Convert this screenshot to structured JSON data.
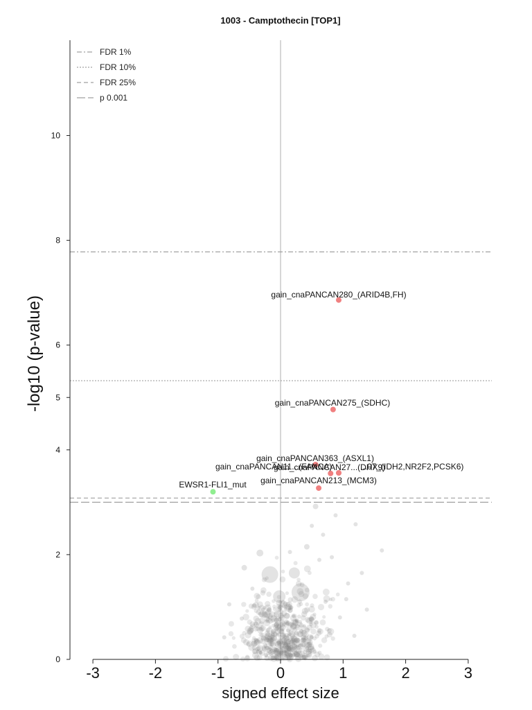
{
  "chart_data": {
    "type": "scatter",
    "title": "1003 - Camptothecin [TOP1]",
    "xlabel": "signed effect size",
    "ylabel": "-log10 (p-value)",
    "xlim": [
      -3.35,
      3.4
    ],
    "ylim": [
      0,
      11.7
    ],
    "xticks": [
      -3,
      -2,
      -1,
      0,
      1,
      2,
      3
    ],
    "yticks": [
      0,
      2,
      4,
      5,
      6,
      8,
      10
    ],
    "thresholds": [
      {
        "name": "FDR 1%",
        "y": 7.78,
        "style": "dashdot"
      },
      {
        "name": "FDR 10%",
        "y": 5.32,
        "style": "dotted"
      },
      {
        "name": "FDR 25%",
        "y": 3.08,
        "style": "dashed"
      },
      {
        "name": "p 0.001",
        "y": 3.0,
        "style": "longdash"
      }
    ],
    "legend_position": "top-left",
    "colors": {
      "positive": "#f08080",
      "negative": "#90ee90",
      "background": "#808080",
      "zero_line": "#c8c8c8",
      "threshold": "#b0b0b0"
    },
    "highlighted": [
      {
        "label": "gain_cnaPANCAN280_(ARID4B,FH)",
        "x": 0.93,
        "y": 6.86,
        "color": "#f08080"
      },
      {
        "label": "gain_cnaPANCAN275_(SDHC)",
        "x": 0.84,
        "y": 4.77,
        "color": "#f08080"
      },
      {
        "label": "gain_cnaPANCAN363_(ASXL1)",
        "x": 0.56,
        "y": 3.72,
        "color": "#f08080"
      },
      {
        "label": "gain_cnaPANCAN11...(FANCA)",
        "x": 0.8,
        "y": 3.55,
        "color": "#f08080"
      },
      {
        "label": "gain_cnaPANCAN27...(DHX9)",
        "x": 0.93,
        "y": 3.56,
        "color": "#f08080"
      },
      {
        "label": "...07_(IDH2,NR2F2,PCSK6)",
        "x": 0.93,
        "y": 3.56,
        "color": "#f08080"
      },
      {
        "label": "gain_cnaPANCAN213_(MCM3)",
        "x": 0.61,
        "y": 3.27,
        "color": "#f08080"
      },
      {
        "label": "EWSR1-FLI1_mut",
        "x": -1.08,
        "y": 3.2,
        "color": "#90ee90"
      }
    ],
    "background_points": [
      {
        "x": -0.33,
        "y": 2.03,
        "r": 5
      },
      {
        "x": -0.58,
        "y": 1.75,
        "r": 4
      },
      {
        "x": -0.17,
        "y": 1.62,
        "r": 12
      },
      {
        "x": 0.22,
        "y": 1.65,
        "r": 8
      },
      {
        "x": -0.02,
        "y": 1.2,
        "r": 9
      },
      {
        "x": 0.32,
        "y": 1.28,
        "r": 13
      },
      {
        "x": 0.56,
        "y": 2.92,
        "r": 4
      },
      {
        "x": 0.88,
        "y": 2.75,
        "r": 3
      },
      {
        "x": 1.2,
        "y": 2.58,
        "r": 3
      },
      {
        "x": 1.62,
        "y": 2.08,
        "r": 3
      },
      {
        "x": 0.68,
        "y": 2.38,
        "r": 3
      },
      {
        "x": 0.42,
        "y": 2.15,
        "r": 4
      },
      {
        "x": 0.82,
        "y": 1.95,
        "r": 3
      },
      {
        "x": 1.3,
        "y": 1.65,
        "r": 3
      },
      {
        "x": 1.08,
        "y": 1.45,
        "r": 3
      },
      {
        "x": 1.38,
        "y": 0.95,
        "r": 3
      },
      {
        "x": 1.05,
        "y": 1.15,
        "r": 3
      },
      {
        "x": -0.82,
        "y": 1.05,
        "r": 3
      },
      {
        "x": -0.62,
        "y": 0.78,
        "r": 3
      },
      {
        "x": -0.9,
        "y": 0.42,
        "r": 3
      },
      {
        "x": 0.62,
        "y": 1.9,
        "r": 3
      },
      {
        "x": 0.5,
        "y": 2.55,
        "r": 3
      },
      {
        "x": 0.72,
        "y": 1.1,
        "r": 3
      },
      {
        "x": -0.45,
        "y": 1.35,
        "r": 3
      },
      {
        "x": 0.95,
        "y": 0.8,
        "r": 3
      },
      {
        "x": 1.18,
        "y": 0.45,
        "r": 3
      },
      {
        "x": -0.28,
        "y": 0.95,
        "r": 3
      },
      {
        "x": 0.15,
        "y": 2.05,
        "r": 3
      }
    ]
  }
}
